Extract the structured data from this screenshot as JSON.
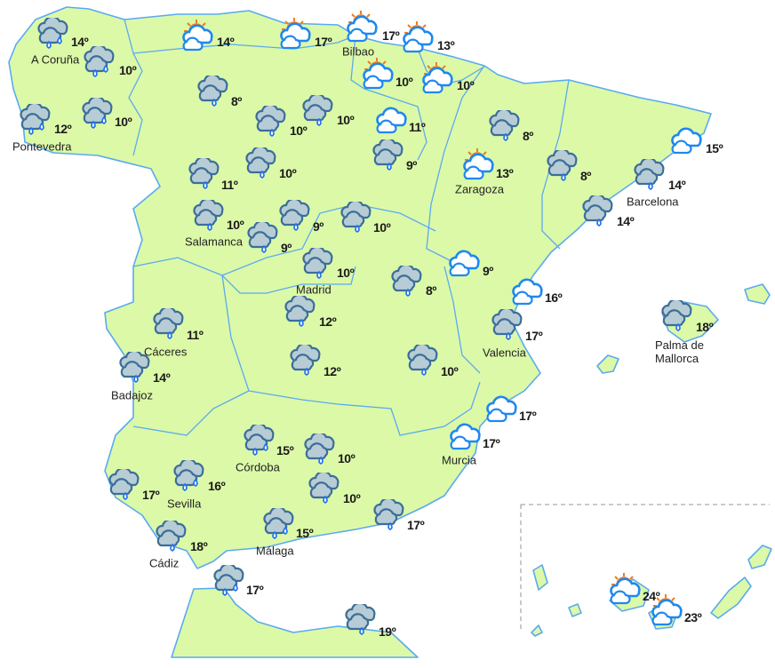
{
  "colors": {
    "land": "#dcf9a8",
    "border": "#5aaaf0",
    "sea": "#ffffff",
    "rain_cloud": "#b8ccd6",
    "rain_outline": "#3b6f98",
    "drop_outline": "#1e6ff0",
    "sun": "#ffd21f",
    "sun_rays": "#f07c1b",
    "cloud_outline": "#1e88f0"
  },
  "icon_types": {
    "rain1": "rain-cloud-icon",
    "rain2": "heavy-rain-cloud-icon",
    "sun": "partly-sunny-icon",
    "cloud": "cloudy-icon"
  },
  "stations": [
    {
      "icon": "rain2",
      "temp": "14º",
      "city": "A Coruña"
    },
    {
      "icon": "sun",
      "temp": "14º"
    },
    {
      "icon": "sun",
      "temp": "17º"
    },
    {
      "icon": "sun",
      "temp": "17º",
      "city": "Bilbao"
    },
    {
      "icon": "sun",
      "temp": "13º"
    },
    {
      "icon": "rain2",
      "temp": "10º"
    },
    {
      "icon": "sun",
      "temp": "10º"
    },
    {
      "icon": "sun",
      "temp": "10º"
    },
    {
      "icon": "rain1",
      "temp": "8º"
    },
    {
      "icon": "rain2",
      "temp": "12º",
      "city": "Pontevedra"
    },
    {
      "icon": "rain2",
      "temp": "10º"
    },
    {
      "icon": "rain1",
      "temp": "10º"
    },
    {
      "icon": "rain1",
      "temp": "10º"
    },
    {
      "icon": "cloud",
      "temp": "11º"
    },
    {
      "icon": "rain1",
      "temp": "8º"
    },
    {
      "icon": "cloud",
      "temp": "15º"
    },
    {
      "icon": "rain1",
      "temp": "11º"
    },
    {
      "icon": "rain1",
      "temp": "10º"
    },
    {
      "icon": "rain1",
      "temp": "9º"
    },
    {
      "icon": "sun",
      "temp": "13º",
      "city": "Zaragoza"
    },
    {
      "icon": "rain1",
      "temp": "8º"
    },
    {
      "icon": "rain1",
      "temp": "14º",
      "city": "Barcelona"
    },
    {
      "icon": "rain1",
      "temp": "10º",
      "city": "Salamanca"
    },
    {
      "icon": "rain1",
      "temp": "9º"
    },
    {
      "icon": "rain1",
      "temp": "10º"
    },
    {
      "icon": "rain1",
      "temp": "14º"
    },
    {
      "icon": "rain1",
      "temp": "9º"
    },
    {
      "icon": "rain1",
      "temp": "10º",
      "city": "Madrid"
    },
    {
      "icon": "cloud",
      "temp": "9º"
    },
    {
      "icon": "rain1",
      "temp": "8º"
    },
    {
      "icon": "cloud",
      "temp": "16º"
    },
    {
      "icon": "rain1",
      "temp": "18º",
      "city": "Palma de",
      "city2": "Mallorca"
    },
    {
      "icon": "rain1",
      "temp": "11º",
      "city": "Cáceres"
    },
    {
      "icon": "rain1",
      "temp": "12º"
    },
    {
      "icon": "rain1",
      "temp": "17º",
      "city": "Valencia"
    },
    {
      "icon": "rain1",
      "temp": "14º",
      "city": "Badajoz"
    },
    {
      "icon": "rain1",
      "temp": "12º"
    },
    {
      "icon": "rain1",
      "temp": "10º"
    },
    {
      "icon": "cloud",
      "temp": "17º"
    },
    {
      "icon": "cloud",
      "temp": "17º",
      "city": "Murcia"
    },
    {
      "icon": "rain2",
      "temp": "15º",
      "city": "Córdoba"
    },
    {
      "icon": "rain1",
      "temp": "10º"
    },
    {
      "icon": "rain2",
      "temp": "16º",
      "city": "Sevilla"
    },
    {
      "icon": "rain1",
      "temp": "17º"
    },
    {
      "icon": "rain1",
      "temp": "10º"
    },
    {
      "icon": "rain1",
      "temp": "17º"
    },
    {
      "icon": "rain2",
      "temp": "15º",
      "city": "Málaga"
    },
    {
      "icon": "rain1",
      "temp": "18º",
      "city": "Cádiz"
    },
    {
      "icon": "rain2",
      "temp": "17º"
    },
    {
      "icon": "rain1",
      "temp": "19º"
    },
    {
      "icon": "sun",
      "temp": "24º"
    },
    {
      "icon": "sun",
      "temp": "23º"
    }
  ]
}
